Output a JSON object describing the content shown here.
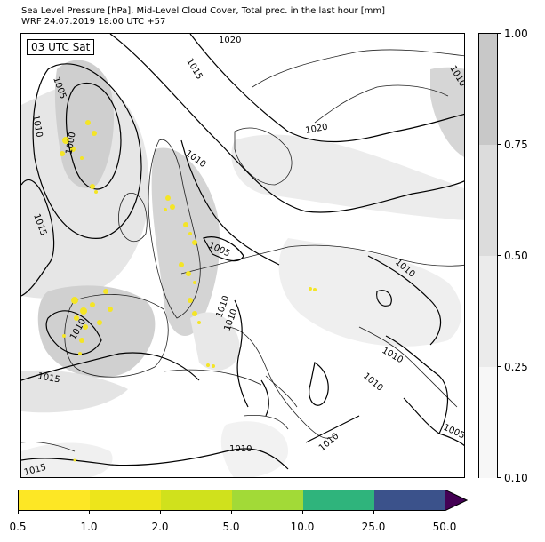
{
  "header": {
    "title_line1": "Sea Level Pressure [hPa], Mid-Level Cloud Cover, Total prec. in the last hour [mm]",
    "title_line2": "WRF 24.07.2019 18:00 UTC +57"
  },
  "map": {
    "time_label": "03 UTC Sat",
    "isobar_labels": [
      "1020",
      "1015",
      "1005",
      "1010",
      "1000",
      "1010",
      "1015",
      "1020",
      "1010",
      "1005",
      "1010",
      "1010",
      "1015",
      "1010",
      "1010",
      "1010",
      "1010",
      "1005",
      "1010",
      "1010",
      "1015",
      "1015",
      "1010"
    ],
    "colors": {
      "cloud_light": "#f2f2f2",
      "cloud_mid": "#e0e0e0",
      "cloud_dark": "#c8c8c8",
      "precip": "#f4e526",
      "isobar": "#000000"
    }
  },
  "cloud_colorbar": {
    "labels": [
      "0.10",
      "0.25",
      "0.50",
      "0.75",
      "1.00"
    ],
    "colors": [
      "#f7f7f7",
      "#ebebeb",
      "#dcdcdc",
      "#c8c8c8"
    ]
  },
  "precip_colorbar": {
    "labels": [
      "0.5",
      "1.0",
      "2.0",
      "5.0",
      "10.0",
      "25.0",
      "50.0"
    ],
    "colors": [
      "#fde725",
      "#ede51b",
      "#d0e11c",
      "#a2da37",
      "#2fb47c",
      "#3b528b",
      "#440154"
    ]
  }
}
